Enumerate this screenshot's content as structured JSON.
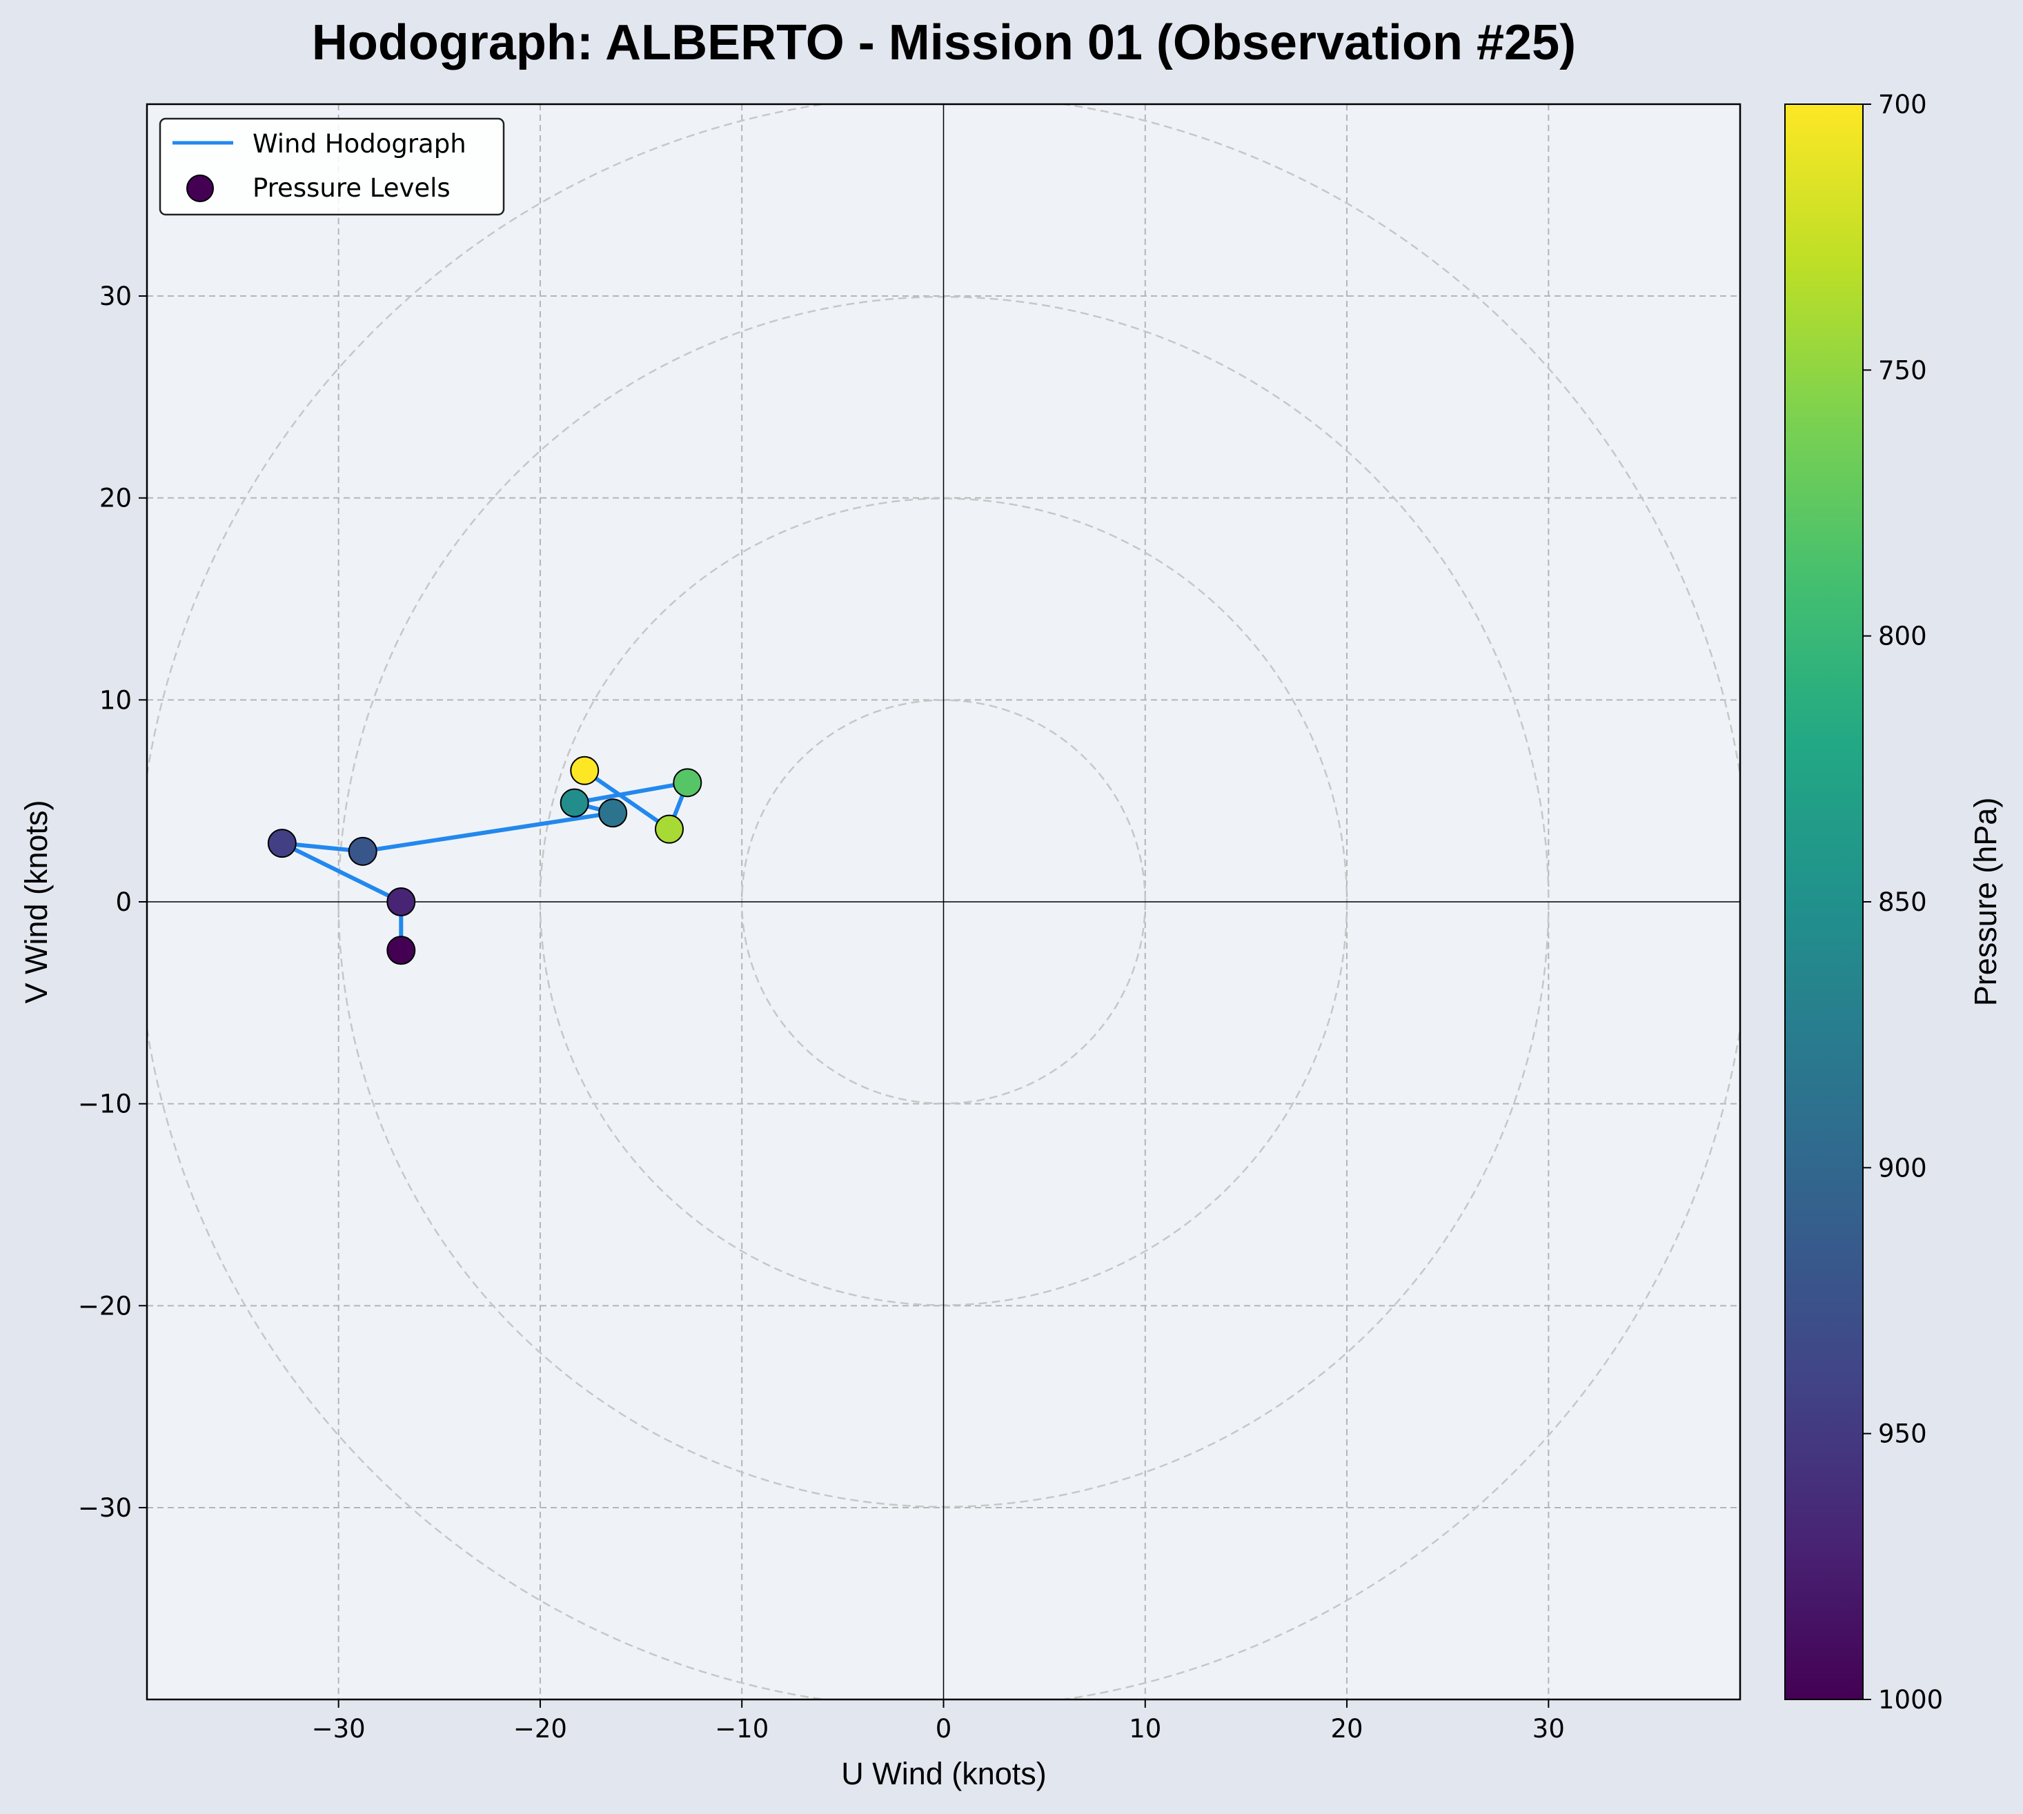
{
  "chart_data": {
    "type": "scatter",
    "title": "Hodograph: ALBERTO - Mission 01 (Observation #25)",
    "xlabel": "U Wind (knots)",
    "ylabel": "V Wind (knots)",
    "xlim": [
      -39.5,
      39.5
    ],
    "ylim": [
      -39.5,
      39.5
    ],
    "xticks": [
      -30,
      -20,
      -10,
      0,
      10,
      20,
      30
    ],
    "yticks": [
      -30,
      -20,
      -10,
      0,
      10,
      20,
      30
    ],
    "xtick_labels": [
      "−30",
      "−20",
      "−10",
      "0",
      "10",
      "20",
      "30"
    ],
    "ytick_labels": [
      "−30",
      "−20",
      "−10",
      "0",
      "10",
      "20",
      "30"
    ],
    "grid": true,
    "range_rings": [
      10,
      20,
      30,
      40
    ],
    "legend": {
      "position": "top-left",
      "entries": [
        "Wind Hodograph",
        "Pressure Levels"
      ]
    },
    "line_color": "#2288ee",
    "points": [
      {
        "u": -26.9,
        "v": -2.4,
        "pressure": 1000
      },
      {
        "u": -26.9,
        "v": 0.0,
        "pressure": 970
      },
      {
        "u": -32.8,
        "v": 2.9,
        "pressure": 945
      },
      {
        "u": -28.8,
        "v": 2.5,
        "pressure": 920
      },
      {
        "u": -16.4,
        "v": 4.4,
        "pressure": 885
      },
      {
        "u": -18.3,
        "v": 4.9,
        "pressure": 855
      },
      {
        "u": -12.7,
        "v": 5.9,
        "pressure": 780
      },
      {
        "u": -13.6,
        "v": 3.6,
        "pressure": 740
      },
      {
        "u": -17.8,
        "v": 6.5,
        "pressure": 700
      }
    ],
    "colorbar": {
      "label": "Pressure (hPa)",
      "colormap": "viridis",
      "range": [
        700,
        1000
      ],
      "ticks": [
        700,
        750,
        800,
        850,
        900,
        950,
        1000
      ],
      "tick_labels": [
        "700",
        "750",
        "800",
        "850",
        "900",
        "950",
        "1000"
      ],
      "inverted": true
    }
  }
}
